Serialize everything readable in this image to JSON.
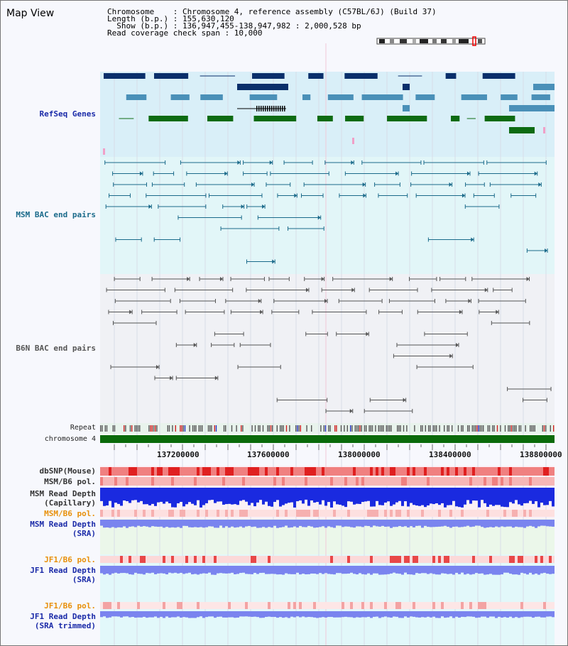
{
  "header": {
    "title": "Map View",
    "info_lines": [
      "Chromosome    : Chromosome 4, reference assembly (C57BL/6J) (Build 37)",
      "Length (b.p.) : 155,630,120",
      "  Show (b.p.) : 136,947,455-138,947,982 : 2,000,528 bp",
      "Read coverage check span : 10,000"
    ]
  },
  "tracks": {
    "refseq": "RefSeq Genes",
    "msm_bac": "MSM BAC end pairs",
    "b6n_bac": "B6N BAC end pairs",
    "repeat": "Repeat",
    "chromosome": "chromosome 4",
    "dbsnp": "dbSNP(Mouse)",
    "msm_b6_pol": "MSM/B6 pol.",
    "msm_depth_cap_1": "MSM Read Depth",
    "msm_depth_cap_2": "(Capillary)",
    "msm_b6_pol2": "MSM/B6 pol.",
    "msm_depth_sra_1": "MSM Read Depth",
    "msm_depth_sra_2": "(SRA)",
    "jf1_b6_pol": "JF1/B6 pol.",
    "jf1_depth_sra_1": "JF1 Read Depth",
    "jf1_depth_sra_2": "(SRA)",
    "jf1_b6_pol2": "JF1/B6 pol.",
    "jf1_depth_trim_1": "JF1 Read Depth",
    "jf1_depth_trim_2": "(SRA trimmed)"
  },
  "axis": {
    "ticks": [
      "137200000",
      "137600000",
      "138000000",
      "138400000",
      "138800000"
    ]
  },
  "colors": {
    "refseq_dark": "#0a2f6b",
    "refseq_light": "#4a90b8",
    "refseq_green": "#0d6b12",
    "msm_line": "#1a6a8a",
    "b6n_line": "#555555",
    "chromosome_bar": "#0a6a0a",
    "snp_red": "#f06060",
    "depth_blue": "#1a2ae0",
    "depth_light": "#7a84ef",
    "pol_label": "#e8900a",
    "label_blue": "#1a2aa8",
    "label_teal": "#1a6a8a"
  }
}
